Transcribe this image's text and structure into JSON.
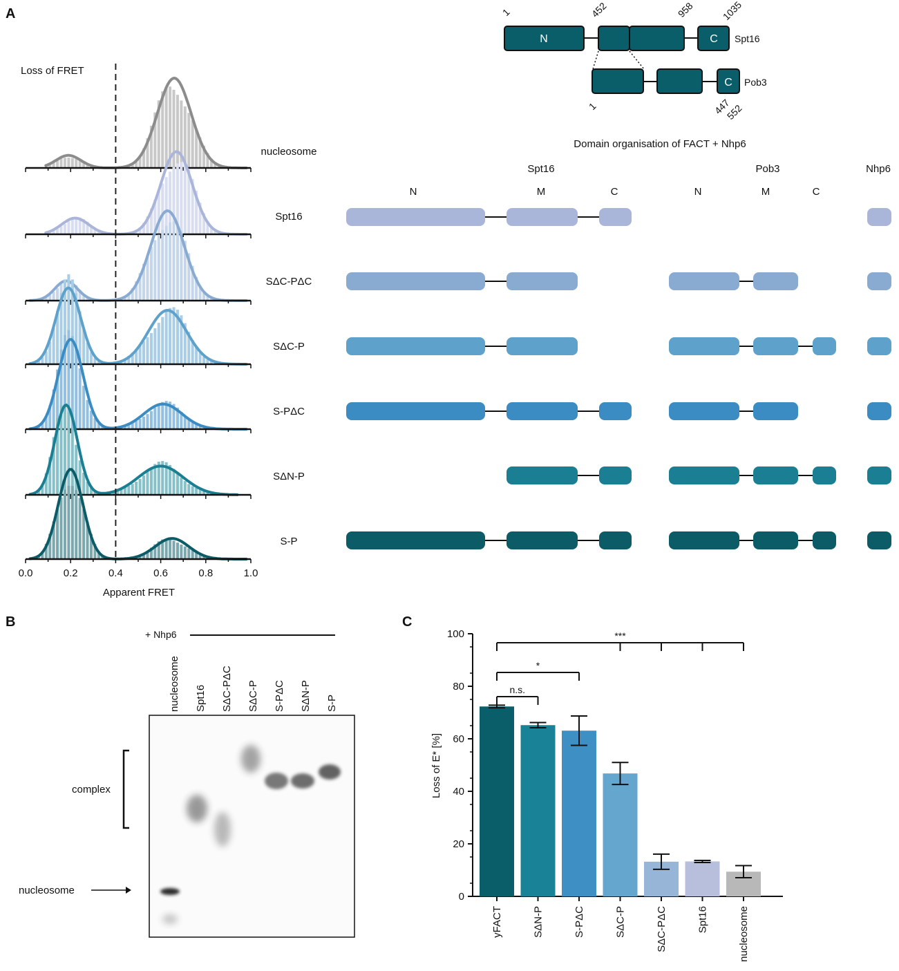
{
  "panels": {
    "a": "A",
    "b": "B",
    "c": "C"
  },
  "colors": {
    "nucleosome": "#8c8c8c",
    "spt16": "#b7bfdc",
    "sdc_pdc": "#97b5d6",
    "sdc_p": "#64a6cd",
    "s_pdc": "#3d8fc4",
    "sdn_p": "#1a8296",
    "s_p": "#0a5e6a",
    "gray_bar": "#b8b8b8"
  },
  "panel_a": {
    "loss_label": "Loss of FRET",
    "threshold": 0.4,
    "xlabel": "Apparent FRET",
    "xticks": [
      "0.0",
      "0.2",
      "0.4",
      "0.6",
      "0.8",
      "1.0"
    ],
    "rows": [
      {
        "label": "nucleosome",
        "color": "#8c8c8c",
        "light": "#c8c8c8",
        "peaks": [
          [
            0.19,
            0.055,
            0.14
          ],
          [
            0.66,
            0.075,
            1.0
          ]
        ],
        "xmin": 0.09,
        "xmax": 0.98,
        "domains": null
      },
      {
        "label": "Spt16",
        "color": "#aab5da",
        "light": "#d8ddef",
        "peaks": [
          [
            0.22,
            0.06,
            0.18
          ],
          [
            0.67,
            0.07,
            0.92
          ]
        ],
        "xmin": 0.09,
        "xmax": 0.98,
        "domains": [
          "sN",
          "sM",
          "sC",
          "nhp"
        ]
      },
      {
        "label": "SΔC-PΔC",
        "color": "#89abd1",
        "light": "#c5d6ea",
        "peaks": [
          [
            0.18,
            0.05,
            0.22
          ],
          [
            0.63,
            0.075,
            1.0
          ]
        ],
        "xmin": 0.02,
        "xmax": 0.98,
        "domains": [
          "sN",
          "sM",
          "pN",
          "pM",
          "nhp"
        ]
      },
      {
        "label": "SΔC-P",
        "color": "#5ea1cb",
        "light": "#a9cde4",
        "peaks": [
          [
            0.19,
            0.055,
            0.85
          ],
          [
            0.63,
            0.085,
            0.6
          ]
        ],
        "xmin": 0.02,
        "xmax": 0.98,
        "domains": [
          "sN",
          "sM",
          "pN",
          "pM",
          "pC",
          "nhp"
        ]
      },
      {
        "label": "S-PΔC",
        "color": "#3a8cc2",
        "light": "#93c0e0",
        "peaks": [
          [
            0.2,
            0.055,
            1.0
          ],
          [
            0.61,
            0.085,
            0.28
          ]
        ],
        "xmin": 0.02,
        "xmax": 0.98,
        "domains": [
          "sN",
          "sM",
          "sC",
          "pN",
          "pM",
          "nhp"
        ]
      },
      {
        "label": "SΔN-P",
        "color": "#1a7f92",
        "light": "#86c0c9",
        "peaks": [
          [
            0.18,
            0.05,
            1.0
          ],
          [
            0.6,
            0.1,
            0.32
          ]
        ],
        "xmin": 0.02,
        "xmax": 0.94,
        "domains": [
          "sM",
          "sC",
          "pN",
          "pM",
          "pC",
          "nhp"
        ]
      },
      {
        "label": "S-P",
        "color": "#0c5c68",
        "light": "#7aa8ae",
        "peaks": [
          [
            0.2,
            0.055,
            1.0
          ],
          [
            0.65,
            0.075,
            0.23
          ]
        ],
        "xmin": 0.02,
        "xmax": 0.98,
        "domains": [
          "sN",
          "sM",
          "sC",
          "pN",
          "pM",
          "pC",
          "nhp"
        ]
      }
    ]
  },
  "domain_header": {
    "title": "Domain organisation of FACT + Nhp6",
    "spt16": "Spt16",
    "pob3": "Pob3",
    "nhp6": "Nhp6",
    "letters": [
      "N",
      "M",
      "C",
      "N",
      "M",
      "C"
    ]
  },
  "schematic": {
    "spt16_label": "Spt16",
    "pob3_label": "Pob3",
    "n": "N",
    "c": "C",
    "c2": "C",
    "n1": "1",
    "n452": "452",
    "n958": "958",
    "n1035": "1035",
    "p1": "1",
    "n447": "447",
    "n552": "552"
  },
  "panel_b": {
    "nhp6": "+ Nhp6",
    "lanes": [
      "nucleosome",
      "Spt16",
      "SΔC-PΔC",
      "SΔC-P",
      "S-PΔC",
      "SΔN-P",
      "S-P"
    ],
    "complex_label": "complex",
    "nucleosome_label": "nucleosome"
  },
  "chart_data": {
    "type": "bar",
    "title": "",
    "ylabel": "Loss of E* [%]",
    "ylim": [
      0,
      100
    ],
    "yticks": [
      0,
      20,
      40,
      60,
      80,
      100
    ],
    "categories": [
      "yFACT",
      "SΔN-P",
      "S-PΔC",
      "SΔC-P",
      "SΔC-PΔC",
      "Spt16",
      "nucleosome"
    ],
    "values": [
      72.3,
      65.2,
      63.1,
      46.8,
      13.2,
      13.3,
      9.4
    ],
    "errors": [
      0.5,
      1.0,
      5.6,
      4.2,
      2.9,
      0.4,
      2.3
    ],
    "colors": [
      "#0a5e6a",
      "#1a8296",
      "#3d8fc4",
      "#64a6cd",
      "#97b5d6",
      "#b7bfdc",
      "#b8b8b8"
    ],
    "significance": [
      {
        "label": "n.s.",
        "from": 0,
        "to": 1
      },
      {
        "label": "*",
        "from": 0,
        "to": 2
      },
      {
        "label": "***",
        "from": 0,
        "to": [
          3,
          4,
          5,
          6
        ]
      }
    ]
  }
}
